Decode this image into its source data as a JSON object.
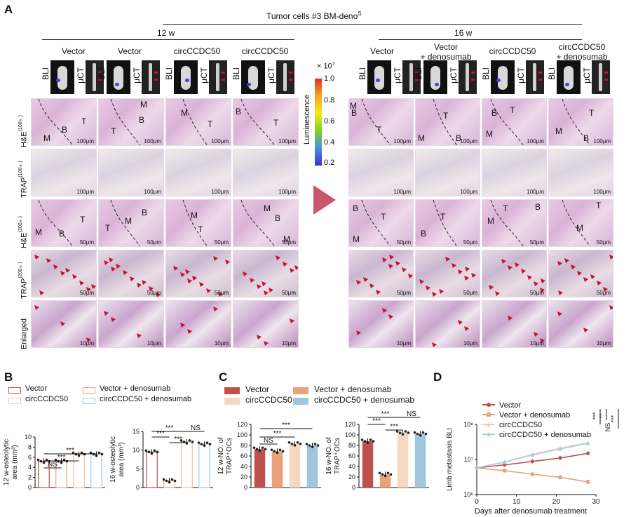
{
  "panel_letters": {
    "a": "A",
    "b": "B",
    "c": "C",
    "d": "D"
  },
  "header": {
    "title": "Tumor cells #3 BM-deno",
    "title_sup": "S",
    "w12": "12 w",
    "w16": "16 w"
  },
  "groups12": [
    {
      "l1": "Vector",
      "l2": ""
    },
    {
      "l1": "Vector",
      "l2": ""
    },
    {
      "l1": "circCCDC50",
      "l2": ""
    },
    {
      "l1": "circCCDC50",
      "l2": ""
    }
  ],
  "groups16": [
    {
      "l1": "Vector",
      "l2": ""
    },
    {
      "l1": "Vector",
      "l2": "+ denosumab"
    },
    {
      "l1": "circCCDC50",
      "l2": ""
    },
    {
      "l1": "circCCDC50",
      "l2": "+ denosumab"
    }
  ],
  "imaging": {
    "bli": "BLI",
    "uct": "μCT"
  },
  "colorbar": {
    "exp": "× 10",
    "exp_sup": "7",
    "label": "Luminescence",
    "ticks": [
      "1.0",
      "0.8",
      "0.6",
      "0.4",
      "0.2"
    ]
  },
  "row_labels": [
    {
      "main": "H&E",
      "sup": "(100×)"
    },
    {
      "main": "TRAP",
      "sup": "(100×)"
    },
    {
      "main": "H&E",
      "sup": "(200×)"
    },
    {
      "main": "TRAP",
      "sup": "(200×)"
    },
    {
      "main": "Enlarged",
      "sup": ""
    }
  ],
  "scalebars": [
    "100μm",
    "100μm",
    "50μm",
    "50μm",
    "10μm"
  ],
  "tissue": {
    "T": "T",
    "B": "B",
    "M": "M"
  },
  "legend_b": [
    "Vector",
    "circCCDC50",
    "Vector + denosumab",
    "circCCDC50 + denosumab"
  ],
  "legend_c": [
    "Vector",
    "circCCDC50",
    "Vector + denosumab",
    "circCCDC50 + denosumab"
  ],
  "legend_d": [
    "Vector",
    "Vector + denosumab",
    "circCCDC50",
    "circCCDC50 + denosumab"
  ],
  "colors": {
    "vector": "#c0504d",
    "vector_deno": "#e8a27c",
    "circ": "#f6d7bf",
    "circ_deno": "#9fc6dc",
    "red_marker": "#c8102e",
    "arrow": "#c9566a"
  },
  "chart_data": [
    {
      "type": "bar",
      "panel": "B",
      "ylabel": "12 w-osteolytic area (mm³)",
      "ylim": [
        0,
        10
      ],
      "yticks": [
        "0",
        "2",
        "4",
        "6",
        "8",
        "10"
      ],
      "categories": [
        "Vector",
        "Vector + denosumab",
        "circCCDC50",
        "circCCDC50 + denosumab"
      ],
      "values": [
        5.2,
        5.2,
        6.6,
        6.6
      ],
      "annotations": [
        "NS",
        "***",
        "***"
      ]
    },
    {
      "type": "bar",
      "panel": "B",
      "ylabel": "16 w-osteolytic area (mm³)",
      "ylim": [
        0,
        15
      ],
      "yticks": [
        "0",
        "5",
        "10",
        "15"
      ],
      "categories": [
        "Vector",
        "Vector + denosumab",
        "circCCDC50",
        "circCCDC50 + denosumab"
      ],
      "values": [
        9.5,
        1.8,
        12.2,
        11.6
      ],
      "annotations": [
        "***",
        "***",
        "***",
        "NS"
      ]
    },
    {
      "type": "bar",
      "panel": "C",
      "ylabel": "12 w-NO. of TRAP⁺OCs",
      "ylim": [
        0,
        120
      ],
      "yticks": [
        "0",
        "20",
        "40",
        "60",
        "80",
        "100",
        "120"
      ],
      "categories": [
        "Vector",
        "Vector + denosumab",
        "circCCDC50",
        "circCCDC50 + denosumab"
      ],
      "values": [
        73,
        69,
        83,
        80
      ],
      "annotations": [
        "NS",
        "***",
        "***"
      ]
    },
    {
      "type": "bar",
      "panel": "C",
      "ylabel": "16 w-NO. of TRAP⁺OCs",
      "ylim": [
        0,
        120
      ],
      "yticks": [
        "0",
        "20",
        "40",
        "60",
        "80",
        "100",
        "120"
      ],
      "categories": [
        "Vector",
        "Vector + denosumab",
        "circCCDC50",
        "circCCDC50 + denosumab"
      ],
      "values": [
        88,
        25,
        104,
        102
      ],
      "annotations": [
        "***",
        "***",
        "***",
        "NS"
      ]
    },
    {
      "type": "line",
      "panel": "D",
      "xlabel": "Days after denosumab treatment",
      "ylabel": "Limb metastasis BLI",
      "ylog": true,
      "ylim_exp": [
        6,
        8
      ],
      "yticks": [
        "10⁶",
        "10⁷",
        "10⁸"
      ],
      "xticks": [
        "0",
        "10",
        "20",
        "30"
      ],
      "x": [
        0,
        7,
        14,
        21,
        28
      ],
      "series": [
        {
          "name": "Vector",
          "values": [
            5800000,
            7000000,
            8800000,
            11000000,
            15000000
          ]
        },
        {
          "name": "Vector + denosumab",
          "values": [
            5800000,
            4800000,
            3800000,
            3100000,
            2300000
          ]
        },
        {
          "name": "circCCDC50",
          "values": [
            5800000,
            8500000,
            14000000,
            21000000,
            30000000
          ]
        },
        {
          "name": "circCCDC50 + denosumab",
          "values": [
            5800000,
            8400000,
            13500000,
            20000000,
            29000000
          ]
        }
      ],
      "annotations": [
        "***",
        "**",
        "***",
        "NS"
      ]
    }
  ]
}
